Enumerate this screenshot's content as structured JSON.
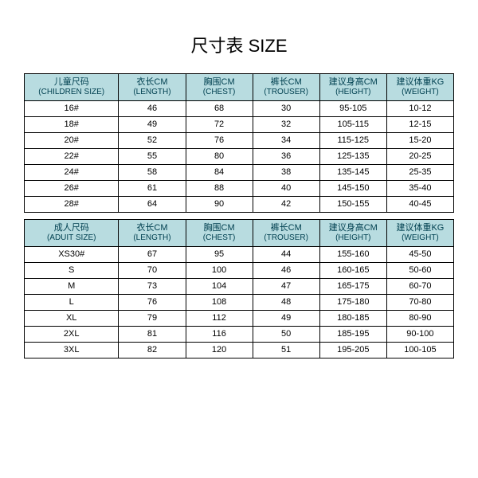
{
  "title": "尺寸表 SIZE",
  "headers": {
    "children": {
      "size": {
        "cn": "儿童尺码",
        "en": "(CHILDREN SIZE)"
      },
      "length": {
        "cn": "衣长CM",
        "en": "(LENGTH)"
      },
      "chest": {
        "cn": "胸围CM",
        "en": "(CHEST)"
      },
      "trouser": {
        "cn": "裤长CM",
        "en": "(TROUSER)"
      },
      "height": {
        "cn": "建议身高CM",
        "en": "(HEIGHT)"
      },
      "weight": {
        "cn": "建议体重KG",
        "en": "(WEIGHT)"
      }
    },
    "adult": {
      "size": {
        "cn": "成人尺码",
        "en": "(ADUIT SIZE)"
      },
      "length": {
        "cn": "衣长CM",
        "en": "(LENGTH)"
      },
      "chest": {
        "cn": "胸围CM",
        "en": "(CHEST)"
      },
      "trouser": {
        "cn": "裤长CM",
        "en": "(TROUSER)"
      },
      "height": {
        "cn": "建议身高CM",
        "en": "(HEIGHT)"
      },
      "weight": {
        "cn": "建议体重KG",
        "en": "(WEIGHT)"
      }
    }
  },
  "children_rows": [
    {
      "size": "16#",
      "length": "46",
      "chest": "68",
      "trouser": "30",
      "height": "95-105",
      "weight": "10-12"
    },
    {
      "size": "18#",
      "length": "49",
      "chest": "72",
      "trouser": "32",
      "height": "105-115",
      "weight": "12-15"
    },
    {
      "size": "20#",
      "length": "52",
      "chest": "76",
      "trouser": "34",
      "height": "115-125",
      "weight": "15-20"
    },
    {
      "size": "22#",
      "length": "55",
      "chest": "80",
      "trouser": "36",
      "height": "125-135",
      "weight": "20-25"
    },
    {
      "size": "24#",
      "length": "58",
      "chest": "84",
      "trouser": "38",
      "height": "135-145",
      "weight": "25-35"
    },
    {
      "size": "26#",
      "length": "61",
      "chest": "88",
      "trouser": "40",
      "height": "145-150",
      "weight": "35-40"
    },
    {
      "size": "28#",
      "length": "64",
      "chest": "90",
      "trouser": "42",
      "height": "150-155",
      "weight": "40-45"
    }
  ],
  "adult_rows": [
    {
      "size": "XS30#",
      "length": "67",
      "chest": "95",
      "trouser": "44",
      "height": "155-160",
      "weight": "45-50"
    },
    {
      "size": "S",
      "length": "70",
      "chest": "100",
      "trouser": "46",
      "height": "160-165",
      "weight": "50-60"
    },
    {
      "size": "M",
      "length": "73",
      "chest": "104",
      "trouser": "47",
      "height": "165-175",
      "weight": "60-70"
    },
    {
      "size": "L",
      "length": "76",
      "chest": "108",
      "trouser": "48",
      "height": "175-180",
      "weight": "70-80"
    },
    {
      "size": "XL",
      "length": "79",
      "chest": "112",
      "trouser": "49",
      "height": "180-185",
      "weight": "80-90"
    },
    {
      "size": "2XL",
      "length": "81",
      "chest": "116",
      "trouser": "50",
      "height": "185-195",
      "weight": "90-100"
    },
    {
      "size": "3XL",
      "length": "82",
      "chest": "120",
      "trouser": "51",
      "height": "195-205",
      "weight": "100-105"
    }
  ],
  "style": {
    "header_bg": "#b8dce0",
    "header_color": "#004050",
    "border_color": "#000000",
    "cell_bg": "#ffffff",
    "title_fontsize": 22,
    "header_fontsize": 11,
    "cell_fontsize": 11
  }
}
